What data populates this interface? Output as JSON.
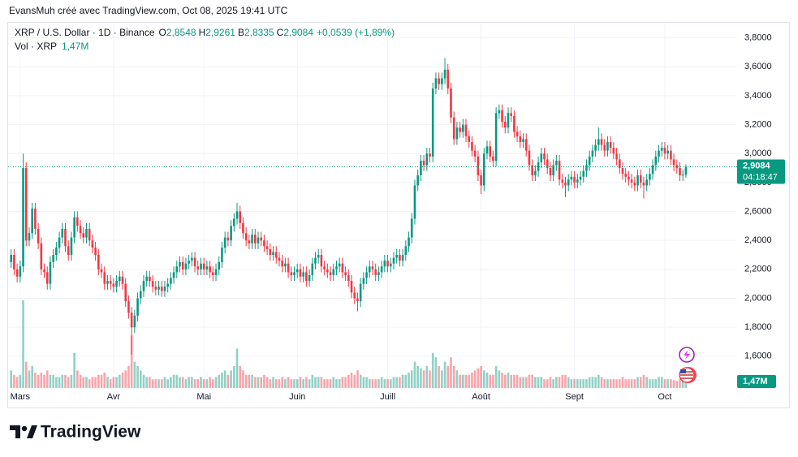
{
  "header": {
    "credit": "EvansMuh créé avec TradingView.com, Oct 08, 2025 19:41 UTC",
    "symbol": "XRP / U.S. Dollar · 1D · Binance",
    "ohlc": [
      {
        "label": "O",
        "value": "2,8548"
      },
      {
        "label": "H",
        "value": "2,9261"
      },
      {
        "label": "B",
        "value": "2,8335"
      },
      {
        "label": "C",
        "value": "2,9084"
      }
    ],
    "change": "+0,0539 (+1,89%)",
    "volume_title": "Vol · XRP"
  },
  "chart_data": {
    "type": "candlestick",
    "up_color": "#089981",
    "down_color": "#f23645",
    "grid": true,
    "xlim": [
      -1,
      241
    ],
    "xticks": [
      {
        "value": 3,
        "label": "Mars"
      },
      {
        "value": 34,
        "label": "Avr"
      },
      {
        "value": 64,
        "label": "Mai"
      },
      {
        "value": 95,
        "label": "Juin"
      },
      {
        "value": 125,
        "label": "Juill"
      },
      {
        "value": 156,
        "label": "Août"
      },
      {
        "value": 187,
        "label": "Sept"
      },
      {
        "value": 217,
        "label": "Oct"
      }
    ],
    "ylim": [
      1.38,
      3.91
    ],
    "yticks": [
      {
        "value": 1.6,
        "label": "1,6000"
      },
      {
        "value": 1.8,
        "label": "1,8000"
      },
      {
        "value": 2.0,
        "label": "2,0000"
      },
      {
        "value": 2.2,
        "label": "2,2000"
      },
      {
        "value": 2.4,
        "label": "2,4000"
      },
      {
        "value": 2.6,
        "label": "2,6000"
      },
      {
        "value": 2.8,
        "label": "2,8000"
      },
      {
        "value": 3.0,
        "label": "3,0000"
      },
      {
        "value": 3.2,
        "label": "3,2000"
      },
      {
        "value": 3.4,
        "label": "3,4000"
      },
      {
        "value": 3.6,
        "label": "3,6000"
      },
      {
        "value": 3.8,
        "label": "3,8000"
      }
    ],
    "volume_lim": [
      0,
      37
    ],
    "volume_label": "1,47M",
    "last_price_label": "2,9084",
    "countdown": "04:18:47",
    "open": [
      2.25,
      2.3,
      2.2,
      2.15,
      2.22,
      2.9,
      2.4,
      2.45,
      2.62,
      2.48,
      2.38,
      2.2,
      2.18,
      2.1,
      2.25,
      2.3,
      2.35,
      2.42,
      2.48,
      2.36,
      2.3,
      2.42,
      2.56,
      2.5,
      2.45,
      2.42,
      2.48,
      2.4,
      2.35,
      2.3,
      2.2,
      2.18,
      2.1,
      2.12,
      2.1,
      2.08,
      2.12,
      2.15,
      2.1,
      1.98,
      1.9,
      1.8,
      1.88,
      2.0,
      2.05,
      2.12,
      2.15,
      2.12,
      2.08,
      2.06,
      2.08,
      2.05,
      2.08,
      2.1,
      2.14,
      2.18,
      2.22,
      2.25,
      2.2,
      2.24,
      2.26,
      2.28,
      2.22,
      2.2,
      2.24,
      2.2,
      2.22,
      2.18,
      2.16,
      2.2,
      2.25,
      2.35,
      2.42,
      2.4,
      2.5,
      2.55,
      2.6,
      2.52,
      2.45,
      2.4,
      2.38,
      2.44,
      2.38,
      2.42,
      2.4,
      2.36,
      2.34,
      2.3,
      2.32,
      2.28,
      2.26,
      2.22,
      2.24,
      2.18,
      2.16,
      2.18,
      2.2,
      2.15,
      2.18,
      2.12,
      2.16,
      2.24,
      2.28,
      2.3,
      2.22,
      2.2,
      2.18,
      2.16,
      2.2,
      2.22,
      2.24,
      2.18,
      2.16,
      2.12,
      2.04,
      2.0,
      1.98,
      2.1,
      2.14,
      2.18,
      2.22,
      2.2,
      2.16,
      2.18,
      2.22,
      2.26,
      2.22,
      2.24,
      2.28,
      2.3,
      2.26,
      2.3,
      2.36,
      2.42,
      2.55,
      2.78,
      2.85,
      2.95,
      2.92,
      3.0,
      2.98,
      3.45,
      3.52,
      3.48,
      3.52,
      3.58,
      3.45,
      3.25,
      3.1,
      3.18,
      3.15,
      3.2,
      3.12,
      3.08,
      3.02,
      2.98,
      2.85,
      2.78,
      3.0,
      3.05,
      2.98,
      2.95,
      3.28,
      3.3,
      3.22,
      3.18,
      3.28,
      3.26,
      3.15,
      3.12,
      3.08,
      3.1,
      3.02,
      2.92,
      2.85,
      2.88,
      2.94,
      3.0,
      2.96,
      2.9,
      2.85,
      2.92,
      2.95,
      2.82,
      2.8,
      2.78,
      2.82,
      2.84,
      2.8,
      2.82,
      2.84,
      2.88,
      2.92,
      2.98,
      3.02,
      3.06,
      3.1,
      3.06,
      3.02,
      3.08,
      3.04,
      3.0,
      2.96,
      2.9,
      2.86,
      2.84,
      2.82,
      2.8,
      2.78,
      2.85,
      2.8,
      2.78,
      2.82,
      2.86,
      2.92,
      2.98,
      3.02,
      3.04,
      3.0,
      3.02,
      2.96,
      2.92,
      2.9,
      2.85,
      2.8548
    ],
    "high": [
      2.34,
      2.34,
      2.24,
      2.26,
      3.0,
      2.94,
      2.49,
      2.66,
      2.66,
      2.52,
      2.42,
      2.24,
      2.22,
      2.29,
      2.34,
      2.39,
      2.46,
      2.52,
      2.52,
      2.4,
      2.46,
      2.6,
      2.6,
      2.54,
      2.49,
      2.52,
      2.52,
      2.44,
      2.39,
      2.34,
      2.24,
      2.22,
      2.16,
      2.16,
      2.14,
      2.16,
      2.19,
      2.19,
      2.14,
      2.02,
      1.94,
      1.92,
      2.04,
      2.09,
      2.16,
      2.19,
      2.19,
      2.16,
      2.12,
      2.12,
      2.12,
      2.12,
      2.14,
      2.18,
      2.22,
      2.26,
      2.29,
      2.29,
      2.28,
      2.3,
      2.32,
      2.32,
      2.26,
      2.28,
      2.28,
      2.26,
      2.26,
      2.22,
      2.24,
      2.29,
      2.39,
      2.46,
      2.46,
      2.54,
      2.59,
      2.66,
      2.64,
      2.56,
      2.49,
      2.44,
      2.48,
      2.48,
      2.46,
      2.46,
      2.44,
      2.4,
      2.38,
      2.36,
      2.36,
      2.32,
      2.3,
      2.28,
      2.28,
      2.22,
      2.22,
      2.24,
      2.24,
      2.22,
      2.22,
      2.2,
      2.28,
      2.32,
      2.34,
      2.34,
      2.26,
      2.24,
      2.22,
      2.24,
      2.26,
      2.28,
      2.28,
      2.22,
      2.2,
      2.16,
      2.08,
      2.04,
      2.14,
      2.18,
      2.22,
      2.26,
      2.26,
      2.24,
      2.22,
      2.26,
      2.3,
      2.3,
      2.28,
      2.32,
      2.34,
      2.34,
      2.34,
      2.4,
      2.46,
      2.59,
      2.82,
      2.89,
      2.99,
      2.99,
      3.04,
      3.04,
      3.49,
      3.56,
      3.56,
      3.56,
      3.66,
      3.62,
      3.49,
      3.29,
      3.22,
      3.22,
      3.24,
      3.24,
      3.16,
      3.12,
      3.06,
      3.02,
      2.89,
      3.04,
      3.09,
      3.09,
      3.02,
      3.32,
      3.34,
      3.34,
      3.26,
      3.32,
      3.32,
      3.3,
      3.19,
      3.16,
      3.14,
      3.14,
      3.06,
      2.96,
      2.92,
      2.98,
      3.04,
      3.04,
      3.0,
      2.94,
      2.96,
      2.99,
      2.99,
      2.86,
      2.84,
      2.86,
      2.88,
      2.88,
      2.86,
      2.88,
      2.92,
      2.96,
      3.02,
      3.06,
      3.1,
      3.18,
      3.14,
      3.1,
      3.12,
      3.12,
      3.08,
      3.04,
      3.0,
      2.94,
      2.9,
      2.88,
      2.86,
      2.84,
      2.89,
      2.89,
      2.84,
      2.86,
      2.9,
      2.96,
      3.02,
      3.06,
      3.08,
      3.08,
      3.06,
      3.06,
      3.0,
      2.96,
      2.94,
      2.89,
      2.9261
    ],
    "low": [
      2.21,
      2.16,
      2.11,
      2.11,
      2.18,
      2.36,
      2.36,
      2.41,
      2.44,
      2.34,
      2.16,
      2.14,
      2.06,
      2.06,
      2.21,
      2.26,
      2.31,
      2.38,
      2.32,
      2.26,
      2.26,
      2.38,
      2.46,
      2.41,
      2.38,
      2.38,
      2.36,
      2.31,
      2.26,
      2.16,
      2.14,
      2.06,
      2.06,
      2.06,
      2.04,
      2.04,
      2.08,
      2.06,
      1.94,
      1.86,
      1.61,
      1.76,
      1.84,
      1.96,
      2.01,
      2.08,
      2.08,
      2.04,
      2.02,
      2.02,
      2.01,
      2.01,
      2.04,
      2.06,
      2.1,
      2.14,
      2.18,
      2.16,
      2.16,
      2.2,
      2.22,
      2.18,
      2.16,
      2.16,
      2.16,
      2.16,
      2.14,
      2.12,
      2.12,
      2.16,
      2.21,
      2.31,
      2.36,
      2.36,
      2.46,
      2.51,
      2.48,
      2.41,
      2.36,
      2.34,
      2.34,
      2.34,
      2.34,
      2.36,
      2.32,
      2.3,
      2.26,
      2.26,
      2.24,
      2.22,
      2.18,
      2.18,
      2.14,
      2.12,
      2.12,
      2.14,
      2.11,
      2.11,
      2.08,
      2.08,
      2.12,
      2.2,
      2.24,
      2.18,
      2.16,
      2.14,
      2.12,
      2.12,
      2.16,
      2.18,
      2.14,
      2.12,
      2.08,
      2.0,
      1.96,
      1.91,
      1.94,
      2.06,
      2.1,
      2.14,
      2.16,
      2.12,
      2.12,
      2.14,
      2.18,
      2.18,
      2.18,
      2.2,
      2.24,
      2.22,
      2.22,
      2.26,
      2.32,
      2.38,
      2.51,
      2.74,
      2.81,
      2.88,
      2.88,
      2.94,
      2.94,
      3.41,
      3.44,
      3.44,
      3.48,
      3.41,
      3.21,
      3.06,
      3.06,
      3.11,
      3.11,
      3.08,
      3.04,
      2.98,
      2.94,
      2.81,
      2.72,
      2.74,
      2.96,
      2.94,
      2.91,
      2.91,
      3.24,
      3.18,
      3.14,
      3.14,
      3.22,
      3.11,
      3.08,
      3.04,
      3.04,
      2.98,
      2.88,
      2.81,
      2.81,
      2.84,
      2.9,
      2.92,
      2.86,
      2.81,
      2.81,
      2.88,
      2.78,
      2.76,
      2.7,
      2.74,
      2.78,
      2.76,
      2.76,
      2.78,
      2.8,
      2.84,
      2.88,
      2.94,
      2.98,
      3.02,
      3.02,
      2.98,
      2.98,
      3.0,
      2.96,
      2.92,
      2.86,
      2.82,
      2.8,
      2.78,
      2.76,
      2.74,
      2.74,
      2.76,
      2.69,
      2.74,
      2.78,
      2.82,
      2.88,
      2.94,
      2.98,
      2.96,
      2.96,
      2.92,
      2.88,
      2.86,
      2.81,
      2.81,
      2.8335
    ],
    "close": [
      2.3,
      2.2,
      2.15,
      2.22,
      2.9,
      2.4,
      2.45,
      2.62,
      2.48,
      2.38,
      2.2,
      2.18,
      2.1,
      2.25,
      2.3,
      2.35,
      2.42,
      2.48,
      2.36,
      2.3,
      2.42,
      2.56,
      2.5,
      2.45,
      2.42,
      2.48,
      2.4,
      2.35,
      2.3,
      2.2,
      2.18,
      2.1,
      2.12,
      2.1,
      2.08,
      2.12,
      2.15,
      2.1,
      1.98,
      1.9,
      1.8,
      1.88,
      2.0,
      2.05,
      2.12,
      2.15,
      2.12,
      2.08,
      2.06,
      2.08,
      2.05,
      2.08,
      2.1,
      2.14,
      2.18,
      2.22,
      2.25,
      2.2,
      2.24,
      2.26,
      2.28,
      2.22,
      2.2,
      2.24,
      2.2,
      2.22,
      2.18,
      2.16,
      2.2,
      2.25,
      2.35,
      2.42,
      2.4,
      2.5,
      2.55,
      2.6,
      2.52,
      2.45,
      2.4,
      2.38,
      2.44,
      2.38,
      2.42,
      2.4,
      2.36,
      2.34,
      2.3,
      2.32,
      2.28,
      2.26,
      2.22,
      2.24,
      2.18,
      2.16,
      2.18,
      2.2,
      2.15,
      2.18,
      2.12,
      2.16,
      2.24,
      2.28,
      2.3,
      2.22,
      2.2,
      2.18,
      2.16,
      2.2,
      2.22,
      2.24,
      2.18,
      2.16,
      2.12,
      2.04,
      2.0,
      1.98,
      2.1,
      2.14,
      2.18,
      2.22,
      2.2,
      2.16,
      2.18,
      2.22,
      2.26,
      2.22,
      2.24,
      2.28,
      2.3,
      2.26,
      2.3,
      2.36,
      2.42,
      2.55,
      2.78,
      2.85,
      2.95,
      2.92,
      3.0,
      2.98,
      3.45,
      3.52,
      3.48,
      3.52,
      3.58,
      3.45,
      3.25,
      3.1,
      3.18,
      3.15,
      3.2,
      3.12,
      3.08,
      3.02,
      2.98,
      2.85,
      2.78,
      3.0,
      3.05,
      2.98,
      2.95,
      3.28,
      3.3,
      3.22,
      3.18,
      3.28,
      3.26,
      3.15,
      3.12,
      3.08,
      3.1,
      3.02,
      2.92,
      2.85,
      2.88,
      2.94,
      3.0,
      2.96,
      2.9,
      2.85,
      2.92,
      2.95,
      2.82,
      2.8,
      2.78,
      2.82,
      2.84,
      2.8,
      2.82,
      2.84,
      2.88,
      2.92,
      2.98,
      3.02,
      3.06,
      3.1,
      3.06,
      3.02,
      3.08,
      3.04,
      3.0,
      2.96,
      2.9,
      2.86,
      2.84,
      2.82,
      2.8,
      2.78,
      2.85,
      2.8,
      2.78,
      2.82,
      2.86,
      2.92,
      2.98,
      3.02,
      3.04,
      3.0,
      3.02,
      2.96,
      2.92,
      2.9,
      2.85,
      2.8548,
      2.9084
    ],
    "volume": [
      4,
      3,
      2.5,
      3,
      20,
      6,
      4,
      5,
      3.5,
      3,
      3.5,
      3,
      4,
      3,
      3,
      2.5,
      2.5,
      3,
      3,
      2.5,
      3,
      8,
      4,
      3,
      2.5,
      2.5,
      2,
      2.5,
      2.5,
      3,
      3,
      3.5,
      2.5,
      2,
      2.5,
      2.5,
      3,
      3.5,
      4,
      5,
      12,
      6,
      5,
      4,
      3,
      2.5,
      2.5,
      2,
      2,
      2,
      2,
      2.5,
      2,
      2.5,
      3,
      3,
      2.5,
      2.5,
      2,
      2.5,
      2.5,
      2,
      2,
      2.5,
      2,
      2,
      2.5,
      2,
      2.5,
      3,
      3.5,
      4,
      3,
      4,
      5,
      9,
      5,
      4,
      3,
      3,
      3,
      2.5,
      2.5,
      2.5,
      3,
      2.5,
      2,
      2.5,
      2,
      2,
      2.5,
      2,
      2.5,
      2,
      2,
      2,
      2.5,
      2,
      2.5,
      2,
      3,
      2.5,
      2.5,
      2.5,
      2,
      2,
      2,
      2.5,
      2,
      2,
      2.5,
      2.5,
      3,
      3.5,
      3,
      4,
      3,
      2.5,
      2.5,
      2,
      2,
      2,
      2,
      2.5,
      2,
      2,
      2,
      2.5,
      2.5,
      2.5,
      3,
      3,
      3.5,
      4,
      6,
      5,
      4.5,
      4,
      5,
      4,
      8,
      7,
      5,
      4,
      6,
      5,
      7,
      5,
      4,
      3,
      3,
      3,
      3,
      3.5,
      4,
      4.5,
      5,
      4,
      3.5,
      3,
      3,
      5,
      4,
      3.5,
      3,
      3.5,
      3,
      3,
      3,
      2.5,
      2.5,
      2.5,
      3,
      3,
      2.5,
      2.5,
      2.5,
      2,
      2,
      2.5,
      2,
      2.5,
      2.5,
      3,
      3,
      2.5,
      2,
      2,
      2,
      2,
      2,
      2,
      2.5,
      2.5,
      2.5,
      3,
      2.5,
      2,
      2,
      2,
      2,
      2,
      2,
      2.5,
      2,
      2,
      2,
      2,
      2.5,
      2.5,
      3,
      2.5,
      2,
      2,
      2,
      2.5,
      2.5,
      2,
      2,
      2,
      1.8,
      1.6,
      2,
      2.2,
      1.47
    ]
  },
  "footer": {
    "logo": "TradingView"
  }
}
